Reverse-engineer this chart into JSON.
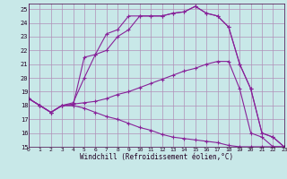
{
  "background_color": "#c8e8e8",
  "grid_color": "#b090b8",
  "line_color": "#882299",
  "xlim": [
    0,
    23
  ],
  "ylim": [
    15,
    25.4
  ],
  "xticks": [
    0,
    1,
    2,
    3,
    4,
    5,
    6,
    7,
    8,
    9,
    10,
    11,
    12,
    13,
    14,
    15,
    16,
    17,
    18,
    19,
    20,
    21,
    22,
    23
  ],
  "yticks": [
    15,
    16,
    17,
    18,
    19,
    20,
    21,
    22,
    23,
    24,
    25
  ],
  "xlabel": "Windchill (Refroidissement éolien,°C)",
  "line1_x": [
    0,
    1,
    2,
    3,
    4,
    5,
    6,
    7,
    8,
    9,
    10,
    11,
    12,
    13,
    14,
    15,
    16,
    17,
    18,
    19,
    20,
    21,
    22,
    23
  ],
  "line1_y": [
    18.5,
    18.0,
    17.5,
    18.0,
    18.0,
    21.5,
    21.7,
    23.2,
    23.5,
    24.5,
    24.5,
    24.5,
    24.5,
    24.7,
    24.8,
    25.2,
    24.7,
    24.5,
    23.7,
    21.0,
    19.2,
    16.0,
    15.7,
    15.0
  ],
  "line2_x": [
    0,
    1,
    2,
    3,
    4,
    5,
    6,
    7,
    8,
    9,
    10,
    11,
    12,
    13,
    14,
    15,
    16,
    17,
    18,
    19,
    20,
    21,
    22,
    23
  ],
  "line2_y": [
    18.5,
    18.0,
    17.5,
    18.0,
    18.2,
    20.0,
    21.7,
    22.0,
    23.0,
    23.5,
    24.5,
    24.5,
    24.5,
    24.7,
    24.8,
    25.2,
    24.7,
    24.5,
    23.7,
    21.0,
    19.2,
    16.0,
    15.7,
    15.0
  ],
  "line3_x": [
    0,
    1,
    2,
    3,
    4,
    5,
    6,
    7,
    8,
    9,
    10,
    11,
    12,
    13,
    14,
    15,
    16,
    17,
    18,
    19,
    20,
    21,
    22,
    23
  ],
  "line3_y": [
    18.5,
    18.0,
    17.5,
    18.0,
    18.1,
    18.2,
    18.3,
    18.5,
    18.8,
    19.0,
    19.3,
    19.6,
    19.9,
    20.2,
    20.5,
    20.7,
    21.0,
    21.2,
    21.2,
    19.2,
    16.0,
    15.7,
    15.0,
    15.0
  ],
  "line4_x": [
    0,
    1,
    2,
    3,
    4,
    5,
    6,
    7,
    8,
    9,
    10,
    11,
    12,
    13,
    14,
    15,
    16,
    17,
    18,
    19,
    20,
    21,
    22,
    23
  ],
  "line4_y": [
    18.5,
    18.0,
    17.5,
    18.0,
    18.0,
    17.8,
    17.5,
    17.2,
    17.0,
    16.7,
    16.4,
    16.2,
    15.9,
    15.7,
    15.6,
    15.5,
    15.4,
    15.3,
    15.1,
    15.0,
    15.0,
    15.0,
    15.0,
    15.0
  ]
}
